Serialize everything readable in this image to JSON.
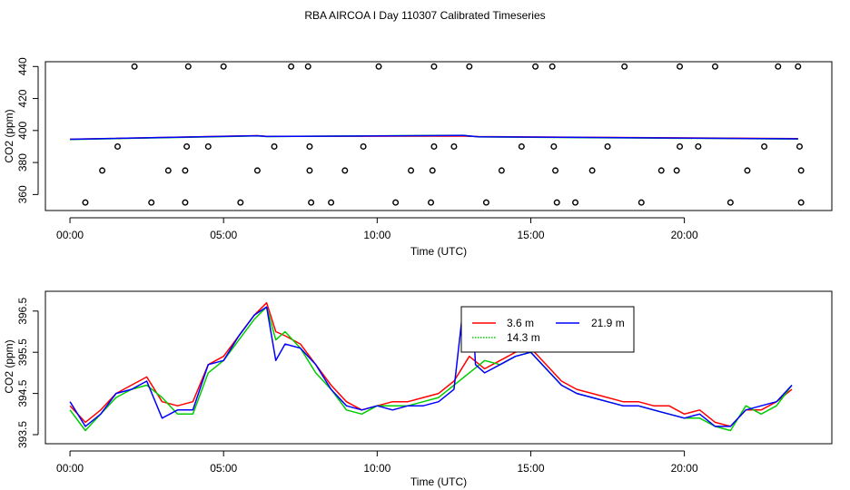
{
  "title": "RBA AIRCOA I  Day 110307  Calibrated Timeseries",
  "chart_data": [
    {
      "type": "scatter+line",
      "xlabel": "Time (UTC)",
      "ylabel": "CO2 (ppm)",
      "xlim": [
        -0.8,
        24.8
      ],
      "ylim": [
        350,
        443
      ],
      "x_ticks": [
        0,
        5,
        10,
        15,
        20
      ],
      "x_tick_labels": [
        "00:00",
        "05:00",
        "10:00",
        "15:00",
        "20:00"
      ],
      "y_ticks": [
        360,
        380,
        400,
        420,
        440
      ],
      "y_tick_labels": [
        "360",
        "380",
        "400",
        "420",
        "440"
      ],
      "calibration_points": [
        [
          2.1,
          440
        ],
        [
          3.85,
          440
        ],
        [
          5.0,
          440
        ],
        [
          7.2,
          440
        ],
        [
          7.75,
          440
        ],
        [
          10.05,
          440
        ],
        [
          11.85,
          440
        ],
        [
          13.0,
          440
        ],
        [
          15.15,
          440
        ],
        [
          15.7,
          440
        ],
        [
          18.05,
          440
        ],
        [
          19.85,
          440
        ],
        [
          21.0,
          440
        ],
        [
          23.05,
          440
        ],
        [
          23.7,
          440
        ],
        [
          1.55,
          390
        ],
        [
          3.8,
          390
        ],
        [
          4.5,
          390
        ],
        [
          6.65,
          390
        ],
        [
          7.8,
          390
        ],
        [
          9.55,
          390
        ],
        [
          11.85,
          390
        ],
        [
          12.5,
          390
        ],
        [
          14.7,
          390
        ],
        [
          15.75,
          390
        ],
        [
          17.5,
          390
        ],
        [
          19.85,
          390
        ],
        [
          20.45,
          390
        ],
        [
          22.6,
          390
        ],
        [
          23.75,
          390
        ],
        [
          1.05,
          375
        ],
        [
          3.2,
          375
        ],
        [
          3.75,
          375
        ],
        [
          6.1,
          375
        ],
        [
          7.8,
          375
        ],
        [
          8.95,
          375
        ],
        [
          11.1,
          375
        ],
        [
          11.8,
          375
        ],
        [
          14.05,
          375
        ],
        [
          15.8,
          375
        ],
        [
          17.0,
          375
        ],
        [
          19.25,
          375
        ],
        [
          19.75,
          375
        ],
        [
          22.05,
          375
        ],
        [
          23.8,
          375
        ],
        [
          0.5,
          355
        ],
        [
          2.65,
          355
        ],
        [
          3.75,
          355
        ],
        [
          5.55,
          355
        ],
        [
          7.85,
          355
        ],
        [
          8.5,
          355
        ],
        [
          10.6,
          355
        ],
        [
          11.75,
          355
        ],
        [
          13.55,
          355
        ],
        [
          15.85,
          355
        ],
        [
          16.45,
          355
        ],
        [
          18.6,
          355
        ],
        [
          21.5,
          355
        ],
        [
          23.8,
          355
        ]
      ],
      "series": [
        {
          "name": "3.6 m",
          "color": "#ff0000",
          "x": [
            0,
            6.1,
            6.4,
            12.8,
            13.3,
            23.7
          ],
          "y": [
            394.6,
            396.8,
            396.4,
            396.5,
            396.2,
            394.9
          ]
        },
        {
          "name": "14.3 m",
          "color": "#00cc00",
          "x": [
            0,
            6.1,
            6.4,
            12.8,
            13.3,
            23.7
          ],
          "y": [
            394.4,
            396.6,
            396.2,
            397.0,
            396.0,
            394.7
          ]
        },
        {
          "name": "21.9 m",
          "color": "#0000ff",
          "x": [
            0,
            6.1,
            6.4,
            12.8,
            13.3,
            23.7
          ],
          "y": [
            394.5,
            396.7,
            396.3,
            396.9,
            396.1,
            394.8
          ]
        }
      ]
    },
    {
      "type": "line",
      "xlabel": "Time (UTC)",
      "ylabel": "CO2 (ppm)",
      "xlim": [
        -0.8,
        24.8
      ],
      "ylim": [
        393.28,
        396.98
      ],
      "x_ticks": [
        0,
        5,
        10,
        15,
        20
      ],
      "x_tick_labels": [
        "00:00",
        "05:00",
        "10:00",
        "15:00",
        "20:00"
      ],
      "y_ticks": [
        393.5,
        394.5,
        395.5,
        396.5
      ],
      "y_tick_labels": [
        "393.5",
        "394.5",
        "395.5",
        "396.5"
      ],
      "legend": {
        "position": "top-center",
        "entries": [
          "3.6 m",
          "14.3 m",
          "21.9 m"
        ]
      },
      "series": [
        {
          "name": "3.6 m",
          "color": "#ff0000",
          "x": [
            0,
            0.5,
            1,
            1.5,
            2,
            2.5,
            3,
            3.5,
            4,
            4.5,
            5,
            5.5,
            6,
            6.4,
            6.7,
            7,
            7.5,
            8,
            8.5,
            9,
            9.5,
            10,
            10.5,
            11,
            11.5,
            12,
            12.5,
            13,
            13.5,
            14,
            14.5,
            15,
            15.5,
            16,
            16.5,
            17,
            17.5,
            18,
            18.5,
            19,
            19.5,
            20,
            20.5,
            21,
            21.5,
            22,
            22.5,
            23,
            23.5
          ],
          "y": [
            394.2,
            393.8,
            394.1,
            394.5,
            394.7,
            394.9,
            394.3,
            394.2,
            394.3,
            395.2,
            395.4,
            395.9,
            396.4,
            396.7,
            396.0,
            395.9,
            395.7,
            395.2,
            394.7,
            394.3,
            394.1,
            394.2,
            394.3,
            394.3,
            394.4,
            394.5,
            394.8,
            395.4,
            395.1,
            395.3,
            395.5,
            395.6,
            395.2,
            394.8,
            394.6,
            394.5,
            394.4,
            394.3,
            394.3,
            394.2,
            394.2,
            394.0,
            394.1,
            393.8,
            393.7,
            394.1,
            394.1,
            394.3,
            394.6
          ]
        },
        {
          "name": "14.3 m",
          "color": "#00cc00",
          "x": [
            0,
            0.5,
            1,
            1.5,
            2,
            2.5,
            3,
            3.5,
            4,
            4.5,
            5,
            5.5,
            6,
            6.4,
            6.7,
            7,
            7.5,
            8,
            8.5,
            9,
            9.5,
            10,
            10.5,
            11,
            11.5,
            12,
            12.5,
            13,
            13.5,
            14,
            14.5,
            15,
            15.5,
            16,
            16.5,
            17,
            17.5,
            18,
            18.5,
            19,
            19.5,
            20,
            20.5,
            21,
            21.5,
            22,
            22.5,
            23,
            23.5
          ],
          "y": [
            394.1,
            393.6,
            394.0,
            394.4,
            394.6,
            394.7,
            394.4,
            394.0,
            394.0,
            395.0,
            395.3,
            395.8,
            396.3,
            396.6,
            395.8,
            396.0,
            395.6,
            395.0,
            394.6,
            394.1,
            394.0,
            394.2,
            394.2,
            394.2,
            394.3,
            394.4,
            394.7,
            395.0,
            395.3,
            395.2,
            395.4,
            395.5,
            395.1,
            394.7,
            394.5,
            394.4,
            394.3,
            394.2,
            394.2,
            394.1,
            394.0,
            393.9,
            393.9,
            393.7,
            393.6,
            394.2,
            394.0,
            394.2,
            394.7
          ]
        },
        {
          "name": "21.9 m",
          "color": "#0000ff",
          "x": [
            0,
            0.5,
            1,
            1.5,
            2,
            2.5,
            3,
            3.5,
            4,
            4.5,
            5,
            5.5,
            6,
            6.4,
            6.7,
            7,
            7.5,
            8,
            8.5,
            9,
            9.5,
            10,
            10.5,
            11,
            11.5,
            12,
            12.5,
            12.8,
            12.9,
            13.1,
            13.2,
            13.5,
            14,
            14.5,
            15,
            15.5,
            16,
            16.5,
            17,
            17.5,
            18,
            18.5,
            19,
            19.5,
            20,
            20.5,
            21,
            21.5,
            22,
            22.5,
            23,
            23.5
          ],
          "y": [
            394.3,
            393.7,
            394.0,
            394.5,
            394.6,
            394.8,
            393.9,
            394.1,
            394.1,
            395.2,
            395.3,
            395.9,
            396.4,
            396.6,
            395.3,
            395.7,
            395.6,
            395.2,
            394.6,
            394.2,
            394.1,
            394.2,
            394.1,
            394.2,
            394.2,
            394.3,
            394.6,
            396.6,
            395.6,
            396.6,
            395.2,
            395.0,
            395.2,
            395.4,
            395.5,
            395.1,
            394.7,
            394.5,
            394.4,
            394.3,
            394.2,
            394.2,
            394.1,
            394.0,
            393.9,
            394.0,
            393.7,
            393.7,
            394.1,
            394.2,
            394.3,
            394.7
          ]
        }
      ]
    }
  ]
}
